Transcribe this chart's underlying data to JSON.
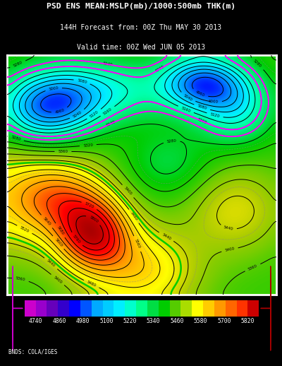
{
  "title_line1": "PSD ENS MEAN:MSLP(mb)/1000:500mb THK(m)",
  "title_line2": "144H Forecast from: 00Z Thu MAY 30 2013",
  "title_line3": "Valid time: 00Z Wed JUN 05 2013",
  "colorbar_labels": [
    "4740",
    "4860",
    "4980",
    "5100",
    "5220",
    "5340",
    "5460",
    "5580",
    "5700",
    "5820"
  ],
  "background_color": "#000000",
  "credit_text": "BNDS: COLA/IGES",
  "figsize": [
    4.0,
    5.18
  ],
  "dpi": 100,
  "thk_vmin": 4700,
  "thk_vmax": 5860,
  "thk_base": 5340,
  "map_border_color": "#ffffff",
  "contour_color": "#000000",
  "contour_special_color": "#00cc00",
  "contour_magenta_color": "#ff00ff",
  "contour_gray_color": "#aaaaaa",
  "cmap_colors": [
    "#aa00cc",
    "#8800bb",
    "#6600aa",
    "#5500bb",
    "#3300dd",
    "#0000ff",
    "#0033ff",
    "#0077ff",
    "#00aaff",
    "#00ccff",
    "#00eeff",
    "#00ffdd",
    "#00ffaa",
    "#00ee77",
    "#00dd44",
    "#00cc00",
    "#33cc00",
    "#77cc00",
    "#aacc00",
    "#dddd00",
    "#ffff00",
    "#ffdd00",
    "#ffbb00",
    "#ff9900",
    "#ff6600",
    "#ff3300",
    "#ff0000",
    "#dd0000",
    "#bb0000",
    "#990000"
  ],
  "cb_colors": [
    "#cc00cc",
    "#9900cc",
    "#6600bb",
    "#3300cc",
    "#0000ff",
    "#0055ff",
    "#00aaff",
    "#00ccff",
    "#00eeff",
    "#00ffcc",
    "#00ff88",
    "#00dd44",
    "#00cc00",
    "#55cc00",
    "#aadd00",
    "#ffff00",
    "#ffcc00",
    "#ff9900",
    "#ff6600",
    "#ff3300",
    "#cc0000"
  ]
}
